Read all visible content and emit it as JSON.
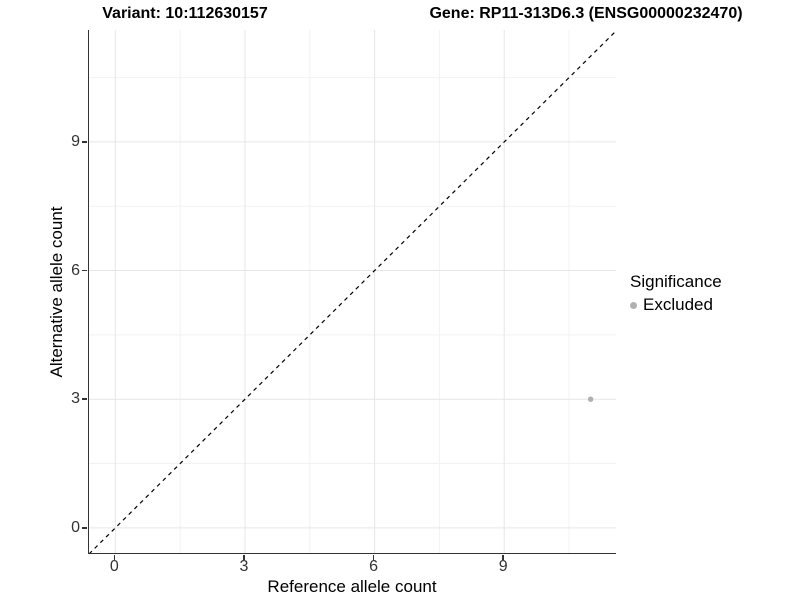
{
  "titles": {
    "left": "Variant: 10:112630157",
    "right": "Gene: RP11-313D6.3 (ENSG00000232470)"
  },
  "chart_data": {
    "type": "scatter",
    "title_left": "Variant: 10:112630157",
    "title_right": "Gene: RP11-313D6.3 (ENSG00000232470)",
    "xlabel": "Reference allele count",
    "ylabel": "Alternative allele count",
    "xticks": [
      0,
      3,
      6,
      9
    ],
    "yticks": [
      0,
      3,
      6,
      9
    ],
    "minor_xticks": [
      1.5,
      4.5,
      7.5,
      10.5
    ],
    "minor_yticks": [
      1.5,
      4.5,
      7.5,
      10.5
    ],
    "xlim": [
      -0.61,
      11.61
    ],
    "ylim": [
      -0.61,
      11.61
    ],
    "grid": true,
    "reference_line": {
      "kind": "identity",
      "style": "dashed",
      "color": "#000000"
    },
    "series": [
      {
        "name": "Excluded",
        "color": "#b0b0b0",
        "points": [
          {
            "x": 11,
            "y": 3
          }
        ]
      }
    ],
    "legend": {
      "title": "Significance",
      "position": "right",
      "entries": [
        {
          "label": "Excluded",
          "color": "#b0b0b0"
        }
      ]
    },
    "style": {
      "grid_major_color": "#e6e6e6",
      "grid_minor_color": "#f2f2f2",
      "axis_line_color": "#333333",
      "point_radius": 2.7
    }
  }
}
